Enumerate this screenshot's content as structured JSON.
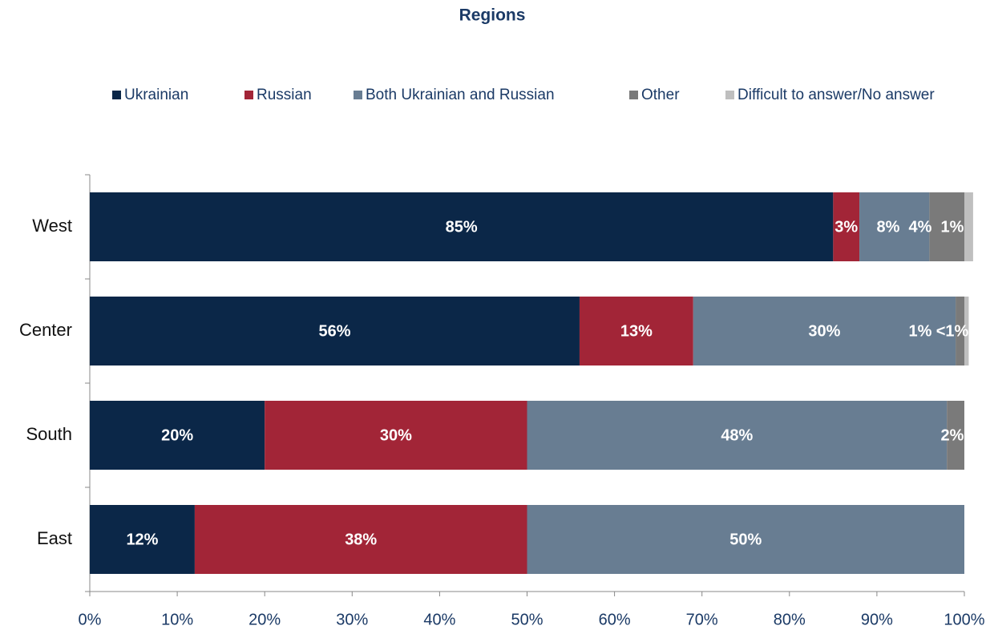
{
  "chart_data": {
    "type": "stacked-barh",
    "title": "Regions",
    "categories": [
      "West",
      "Center",
      "South",
      "East"
    ],
    "series": [
      {
        "name": "Ukrainian",
        "color": "#0b2748",
        "values": [
          85,
          56,
          20,
          12
        ],
        "value_labels": [
          "85%",
          "56%",
          "20%",
          "12%"
        ]
      },
      {
        "name": "Russian",
        "color": "#a22537",
        "values": [
          3,
          13,
          30,
          38
        ],
        "value_labels": [
          "3%",
          "13%",
          "30%",
          "38%"
        ]
      },
      {
        "name": "Both Ukrainian and Russian",
        "color": "#687d92",
        "values": [
          8,
          30,
          48,
          50
        ],
        "value_labels": [
          "8%",
          "30%",
          "48%",
          "50%"
        ]
      },
      {
        "name": "Other",
        "color": "#7a7a7a",
        "values": [
          4,
          1,
          2,
          null
        ],
        "value_labels": [
          "4%",
          "1%",
          "2%",
          null
        ]
      },
      {
        "name": "Difficult to answer/No answer",
        "color": "#bfbfbf",
        "values": [
          1,
          0.5,
          null,
          null
        ],
        "value_labels": [
          "1%",
          "<1%",
          null,
          null
        ]
      }
    ],
    "xlim": [
      0,
      100
    ],
    "xticks": [
      {
        "value": 0,
        "label": "0%"
      },
      {
        "value": 10,
        "label": "10%"
      },
      {
        "value": 20,
        "label": "20%"
      },
      {
        "value": 30,
        "label": "30%"
      },
      {
        "value": 40,
        "label": "40%"
      },
      {
        "value": 50,
        "label": "50%"
      },
      {
        "value": 60,
        "label": "60%"
      },
      {
        "value": 70,
        "label": "70%"
      },
      {
        "value": 80,
        "label": "80%"
      },
      {
        "value": 90,
        "label": "90%"
      },
      {
        "value": 100,
        "label": "100%"
      }
    ],
    "legend": "top"
  }
}
